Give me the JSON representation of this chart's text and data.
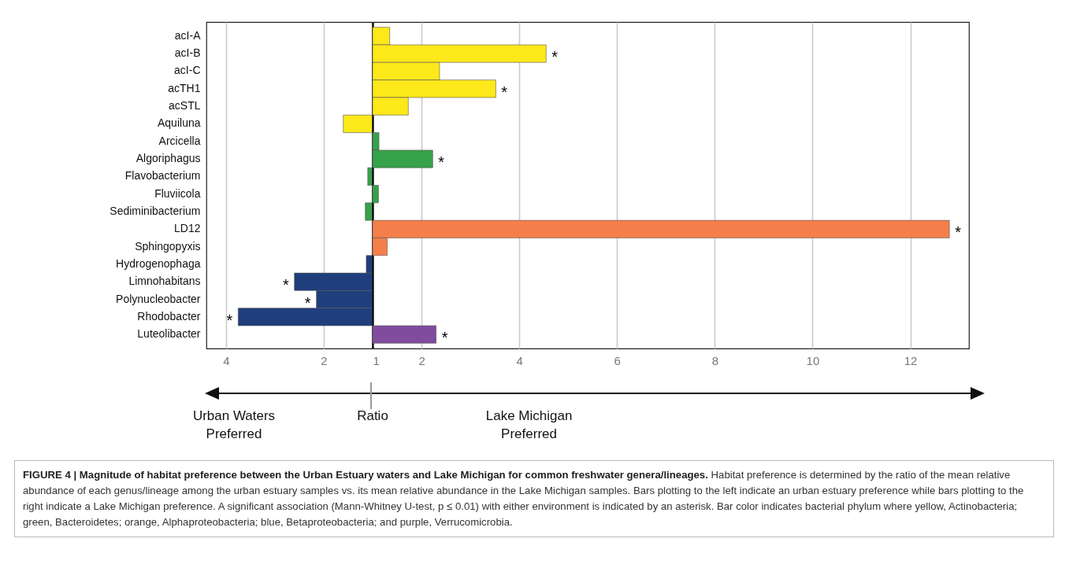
{
  "chart_data": [
    {
      "type": "bar",
      "orientation": "horizontal",
      "title": "FIGURE 4 | Magnitude of habitat preference between the Urban Estuary waters and Lake Michigan for common freshwater genera/lineages.",
      "categories": [
        "acI-A",
        "acI-B",
        "acI-C",
        "acTH1",
        "acSTL",
        "Aquiluna",
        "Arcicella",
        "Algoriphagus",
        "Flavobacterium",
        "Fluviicola",
        "Sediminibacterium",
        "LD12",
        "Sphingopyxis",
        "Hydrogenophaga",
        "Limnohabitans",
        "Polynucleobacter",
        "Rhodobacter",
        "Luteolibacter"
      ],
      "values": [
        null,
        null,
        null,
        null,
        null,
        0.6,
        null,
        null,
        0.1,
        null,
        0.15,
        null,
        null,
        0.13,
        1.6,
        1.15,
        2.75,
        null
      ],
      "base": [
        null,
        null,
        null,
        null,
        null,
        1,
        null,
        null,
        1,
        null,
        1,
        null,
        null,
        1,
        1,
        1,
        1,
        null
      ],
      "colors": [
        null,
        null,
        null,
        null,
        null,
        "#fde81a",
        null,
        null,
        "#36a24a",
        null,
        "#36a24a",
        null,
        null,
        "#1f3e7c",
        "#1f3e7c",
        "#1f3e7c",
        "#1f3e7c",
        null
      ],
      "xlim": [
        4.4,
        1
      ],
      "xticks": [
        4,
        2
      ],
      "grid": "x",
      "annotations": [
        {
          "text": "*",
          "x": 2.6,
          "y": "Limnohabitans"
        },
        {
          "text": "*",
          "x": 2.15,
          "y": "Polynucleobacter"
        },
        {
          "text": "*",
          "x": 3.75,
          "y": "Rhodobacter"
        },
        "Urban Waters\nPreferred",
        "Ratio"
      ]
    },
    {
      "type": "bar",
      "orientation": "horizontal",
      "categories": [
        "acI-A",
        "acI-B",
        "acI-C",
        "acTH1",
        "acSTL",
        "Aquiluna",
        "Arcicella",
        "Algoriphagus",
        "Flavobacterium",
        "Fluviicola",
        "Sediminibacterium",
        "LD12",
        "Sphingopyxis",
        "Hydrogenophaga",
        "Limnohabitans",
        "Polynucleobacter",
        "Rhodobacter",
        "Luteolibacter"
      ],
      "values": [
        0.35,
        3.55,
        1.37,
        2.52,
        0.73,
        null,
        0.13,
        1.23,
        null,
        0.12,
        null,
        11.8,
        0.3,
        null,
        null,
        null,
        null,
        1.3
      ],
      "base": [
        1,
        1,
        1,
        1,
        1,
        null,
        1,
        1,
        null,
        1,
        null,
        1,
        1,
        null,
        null,
        null,
        null,
        1
      ],
      "colors": [
        "#fde81a",
        "#fde81a",
        "#fde81a",
        "#fde81a",
        "#fde81a",
        null,
        "#36a24a",
        "#36a24a",
        null,
        "#36a24a",
        null,
        "#f47f4b",
        "#f47f4b",
        null,
        null,
        null,
        null,
        "#7f4c9e"
      ],
      "xlim": [
        1,
        13.2
      ],
      "xticks": [
        1,
        2,
        4,
        6,
        8,
        10,
        12
      ],
      "grid": "x",
      "tick_labels": "x",
      "annotations": [
        {
          "text": "*",
          "x": 4.55,
          "y": "acI-B"
        },
        {
          "text": "*",
          "x": 3.52,
          "y": "acTH1"
        },
        {
          "text": "*",
          "x": 2.23,
          "y": "Algoriphagus"
        },
        {
          "text": "*",
          "x": 12.8,
          "y": "LD12"
        },
        {
          "text": "*",
          "x": 2.3,
          "y": "Luteolibacter"
        },
        "Lake Michigan\nPreferred",
        "Habitat preference is determined by the ratio of the mean relative abundance of each genus/lineage among the urban estuary samples vs. its mean relative abundance in the Lake Michigan samples. Bars plotting to the left indicate an urban estuary preference while bars plotting to the right indicate a Lake Michigan preference. A significant association (Mann-Whitney U-test, p ≤ 0.01) with either environment is indicated by an asterisk. Bar color indicates bacterial phylum where yellow, Actinobacteria; green, Bacteroidetes; orange, Alphaproteobacteria; blue, Betaproteobacteria; and purple, Verrucomicrobia."
      ]
    }
  ]
}
